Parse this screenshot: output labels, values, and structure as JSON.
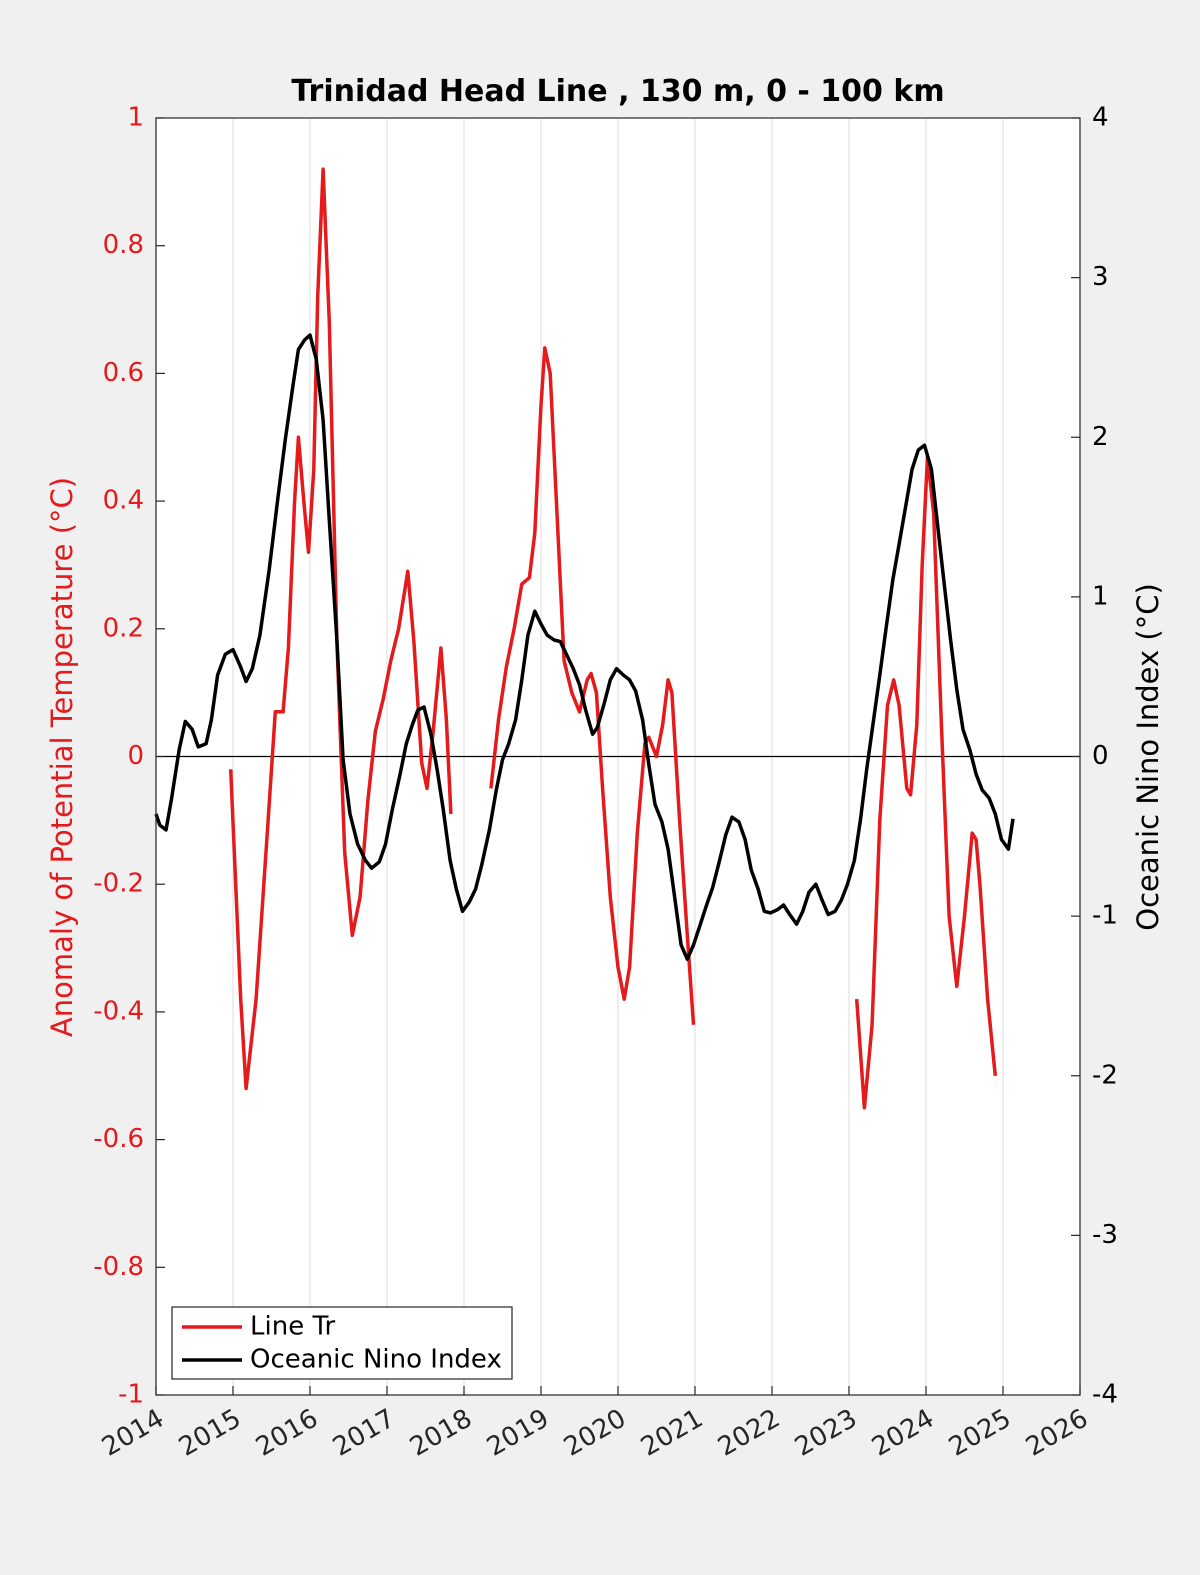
{
  "chart_data": {
    "type": "line",
    "title": "Trinidad Head Line , 130 m, 0 - 100 km",
    "ylabel": "Anomaly of Potential Temperature (°C)",
    "y2label": "Oceanic Nino Index (°C)",
    "xlim": [
      2014,
      2026
    ],
    "xticks": [
      2014,
      2015,
      2016,
      2017,
      2018,
      2019,
      2020,
      2021,
      2022,
      2023,
      2024,
      2025,
      2026
    ],
    "ylim": [
      -1,
      1
    ],
    "yticks": [
      -1,
      -0.8,
      -0.6,
      -0.4,
      -0.2,
      0,
      0.2,
      0.4,
      0.6,
      0.8,
      1
    ],
    "y2lim": [
      -4,
      4
    ],
    "y2ticks": [
      -4,
      -3,
      -2,
      -1,
      0,
      1,
      2,
      3,
      4
    ],
    "xgrid": true,
    "legend": "lower left",
    "series": [
      {
        "name": "Line Tr",
        "color": "#e41a1c",
        "axis": "y",
        "x": [
          2014.97,
          2015.1,
          2015.17,
          2015.3,
          2015.45,
          2015.55,
          2015.65,
          2015.72,
          2015.8,
          2015.85,
          2015.92,
          2015.98,
          2016.05,
          2016.1,
          2016.17,
          2016.25,
          2016.35,
          2016.45,
          2016.55,
          2016.65,
          2016.75,
          2016.85,
          2016.95,
          2017.05,
          2017.15,
          2017.27,
          2017.35,
          2017.45,
          2017.52,
          2017.6,
          2017.7,
          2017.77,
          2017.83,
          2018.1,
          2018.35,
          2018.45,
          2018.55,
          2018.65,
          2018.75,
          2018.85,
          2018.92,
          2019.0,
          2019.05,
          2019.12,
          2019.2,
          2019.3,
          2019.4,
          2019.5,
          2019.6,
          2019.65,
          2019.72,
          2019.8,
          2019.9,
          2020.0,
          2020.08,
          2020.15,
          2020.25,
          2020.35,
          2020.4,
          2020.5,
          2020.58,
          2020.65,
          2020.7,
          2020.8,
          2020.9,
          2020.98,
          2022.0,
          2023.1,
          2023.2,
          2023.3,
          2023.4,
          2023.5,
          2023.58,
          2023.65,
          2023.75,
          2023.8,
          2023.88,
          2023.95,
          2024.02,
          2024.1,
          2024.2,
          2024.3,
          2024.4,
          2024.5,
          2024.6,
          2024.65,
          2024.7,
          2024.8,
          2024.9
        ],
        "values": [
          -0.02,
          -0.38,
          -0.52,
          -0.38,
          -0.11,
          0.07,
          0.07,
          0.17,
          0.4,
          0.5,
          0.4,
          0.32,
          0.45,
          0.72,
          0.92,
          0.68,
          0.18,
          -0.15,
          -0.28,
          -0.22,
          -0.07,
          0.04,
          0.09,
          0.15,
          0.2,
          0.29,
          0.18,
          -0.01,
          -0.05,
          0.04,
          0.17,
          0.06,
          -0.09,
          null,
          -0.05,
          0.06,
          0.14,
          0.2,
          0.27,
          0.28,
          0.35,
          0.55,
          0.64,
          0.6,
          0.4,
          0.15,
          0.1,
          0.07,
          0.12,
          0.13,
          0.1,
          -0.05,
          -0.22,
          -0.33,
          -0.38,
          -0.33,
          -0.12,
          0.02,
          0.03,
          0.0,
          0.05,
          0.12,
          0.1,
          -0.1,
          -0.28,
          -0.42,
          null,
          -0.38,
          -0.55,
          -0.42,
          -0.1,
          0.08,
          0.12,
          0.08,
          -0.05,
          -0.06,
          0.05,
          0.3,
          0.47,
          0.38,
          0.05,
          -0.25,
          -0.36,
          -0.25,
          -0.12,
          -0.13,
          -0.2,
          -0.38,
          -0.5
        ]
      },
      {
        "name": "Oceanic Nino Index",
        "color": "#000000",
        "axis": "y2",
        "x": [
          2014.0,
          2014.05,
          2014.13,
          2014.2,
          2014.3,
          2014.38,
          2014.47,
          2014.55,
          2014.65,
          2014.72,
          2014.8,
          2014.9,
          2015.0,
          2015.1,
          2015.17,
          2015.25,
          2015.35,
          2015.47,
          2015.58,
          2015.68,
          2015.78,
          2015.85,
          2015.93,
          2016.0,
          2016.08,
          2016.17,
          2016.25,
          2016.35,
          2016.43,
          2016.52,
          2016.62,
          2016.72,
          2016.8,
          2016.9,
          2016.98,
          2017.07,
          2017.17,
          2017.25,
          2017.33,
          2017.4,
          2017.48,
          2017.57,
          2017.65,
          2017.73,
          2017.82,
          2017.9,
          2017.98,
          2018.07,
          2018.15,
          2018.23,
          2018.33,
          2018.42,
          2018.5,
          2018.58,
          2018.67,
          2018.75,
          2018.83,
          2018.92,
          2019.0,
          2019.08,
          2019.17,
          2019.25,
          2019.33,
          2019.42,
          2019.5,
          2019.58,
          2019.67,
          2019.73,
          2019.82,
          2019.9,
          2019.98,
          2020.07,
          2020.15,
          2020.23,
          2020.32,
          2020.4,
          2020.48,
          2020.57,
          2020.65,
          2020.73,
          2020.82,
          2020.9,
          2020.98,
          2021.07,
          2021.15,
          2021.23,
          2021.32,
          2021.4,
          2021.48,
          2021.57,
          2021.65,
          2021.73,
          2021.82,
          2021.9,
          2021.98,
          2022.07,
          2022.15,
          2022.23,
          2022.32,
          2022.4,
          2022.48,
          2022.57,
          2022.65,
          2022.73,
          2022.82,
          2022.9,
          2022.98,
          2023.07,
          2023.15,
          2023.23,
          2023.32,
          2023.4,
          2023.48,
          2023.57,
          2023.65,
          2023.73,
          2023.82,
          2023.9,
          2023.98,
          2024.07,
          2024.15,
          2024.23,
          2024.32,
          2024.4,
          2024.48,
          2024.57,
          2024.65,
          2024.73,
          2024.82,
          2024.9,
          2024.98,
          2025.07,
          2025.13
        ],
        "values": [
          -0.36,
          -0.43,
          -0.46,
          -0.27,
          0.04,
          0.22,
          0.17,
          0.06,
          0.08,
          0.23,
          0.51,
          0.64,
          0.67,
          0.56,
          0.47,
          0.55,
          0.76,
          1.17,
          1.61,
          1.99,
          2.33,
          2.55,
          2.61,
          2.64,
          2.49,
          2.11,
          1.48,
          0.73,
          -0.02,
          -0.36,
          -0.55,
          -0.65,
          -0.7,
          -0.66,
          -0.55,
          -0.33,
          -0.11,
          0.08,
          0.2,
          0.29,
          0.31,
          0.14,
          -0.08,
          -0.33,
          -0.65,
          -0.83,
          -0.97,
          -0.91,
          -0.83,
          -0.68,
          -0.46,
          -0.21,
          -0.02,
          0.08,
          0.23,
          0.48,
          0.76,
          0.91,
          0.83,
          0.76,
          0.73,
          0.72,
          0.64,
          0.55,
          0.45,
          0.29,
          0.14,
          0.18,
          0.33,
          0.48,
          0.55,
          0.51,
          0.48,
          0.41,
          0.23,
          -0.05,
          -0.3,
          -0.41,
          -0.58,
          -0.86,
          -1.18,
          -1.27,
          -1.18,
          -1.05,
          -0.93,
          -0.82,
          -0.65,
          -0.49,
          -0.38,
          -0.41,
          -0.52,
          -0.71,
          -0.83,
          -0.97,
          -0.98,
          -0.96,
          -0.93,
          -0.99,
          -1.05,
          -0.97,
          -0.85,
          -0.8,
          -0.9,
          -0.99,
          -0.97,
          -0.9,
          -0.8,
          -0.65,
          -0.39,
          -0.08,
          0.23,
          0.51,
          0.8,
          1.11,
          1.33,
          1.55,
          1.8,
          1.92,
          1.95,
          1.8,
          1.45,
          1.11,
          0.73,
          0.42,
          0.17,
          0.04,
          -0.11,
          -0.21,
          -0.26,
          -0.36,
          -0.52,
          -0.58,
          -0.39
        ]
      }
    ]
  }
}
